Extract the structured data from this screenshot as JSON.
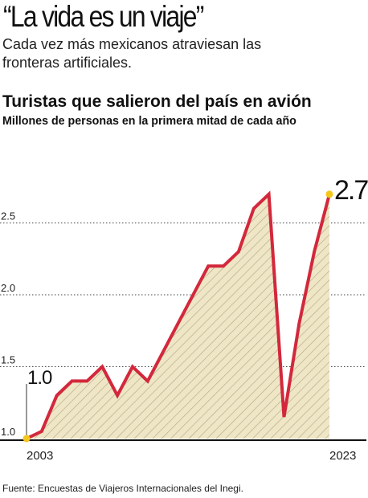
{
  "header": {
    "headline": "“La vida es un viaje”",
    "deck": "Cada vez más mexicanos atraviesan las fronteras artificiales."
  },
  "colors": {
    "line": "#d3283c",
    "fill": "#efe6c6",
    "hatch": "#b3a98c",
    "marker": "#f3c71c",
    "grid": "#444444",
    "axis": "#111111"
  },
  "chart_data": {
    "type": "area",
    "title": "Turistas que salieron del país en avión",
    "subtitle": "Millones de personas en la primera mitad de cada año",
    "xlabel": "",
    "ylabel": "",
    "x": [
      2003,
      2004,
      2005,
      2006,
      2007,
      2008,
      2009,
      2010,
      2011,
      2012,
      2013,
      2014,
      2015,
      2016,
      2017,
      2018,
      2019,
      2020,
      2021,
      2022,
      2023
    ],
    "x_tick_labels": [
      "2003",
      "2023"
    ],
    "yticks": [
      "1.0",
      "1.5",
      "2.0",
      "2.5"
    ],
    "ylim": [
      1.0,
      2.9
    ],
    "series": [
      {
        "values": [
          1.0,
          1.05,
          1.3,
          1.4,
          1.4,
          1.5,
          1.3,
          1.5,
          1.4,
          1.6,
          1.8,
          2.0,
          2.2,
          2.2,
          2.3,
          2.6,
          2.7,
          1.15,
          1.8,
          2.3,
          2.7
        ]
      }
    ],
    "annotations": {
      "start_label": "1.0",
      "end_label": "2.7"
    },
    "grid": "horizontal dotted",
    "pattern": "diagonal hatch under line"
  },
  "footer": {
    "source": "Fuente: Encuestas de Viajeros Internacionales del Inegi."
  }
}
